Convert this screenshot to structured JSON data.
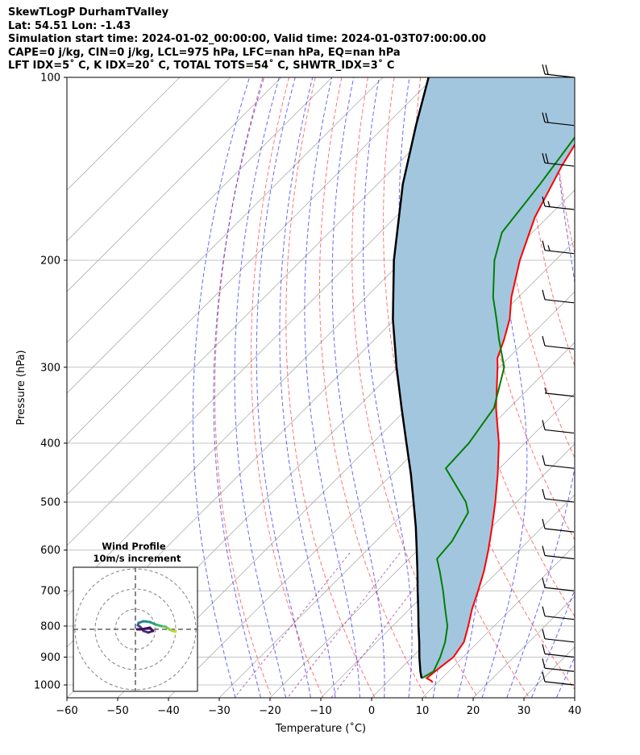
{
  "header": {
    "line1": "SkewTLogP DurhamTValley",
    "line2": "Lat: 54.51   Lon: -1.43",
    "line3": "Simulation start time: 2024-01-02_00:00:00, Valid time: 2024-01-03T07:00:00.00",
    "line4": "CAPE=0 j/kg, CIN=0 j/kg, LCL=975 hPa, LFC=nan hPa, EQ=nan hPa",
    "line5": "LFT IDX=5˚ C, K IDX=20˚ C, TOTAL TOTS=54˚ C, SHWTR_IDX=3˚ C"
  },
  "chart_data": {
    "type": "line",
    "title": "SkewTLogP DurhamTValley",
    "xlabel": "Temperature (˚C)",
    "ylabel": "Pressure (hPa)",
    "xlim": [
      -60,
      40
    ],
    "ylim": [
      1050,
      100
    ],
    "y_scale": "log",
    "skew": true,
    "grid": true,
    "x_ticks": [
      -60,
      -50,
      -40,
      -30,
      -20,
      -10,
      0,
      10,
      20,
      30,
      40
    ],
    "y_ticks": [
      1000,
      900,
      800,
      700,
      600,
      500,
      400,
      300,
      200,
      100
    ],
    "series": [
      {
        "role": "temperature",
        "color": "#ff0000",
        "points": [
          [
            991,
            9
          ],
          [
            985,
            8.5
          ],
          [
            975,
            7
          ],
          [
            950,
            7.3
          ],
          [
            900,
            8.1
          ],
          [
            850,
            7.2
          ],
          [
            800,
            4.9
          ],
          [
            750,
            2.3
          ],
          [
            700,
            -0.1
          ],
          [
            650,
            -2.8
          ],
          [
            600,
            -6.1
          ],
          [
            550,
            -9.9
          ],
          [
            500,
            -14.2
          ],
          [
            450,
            -19.2
          ],
          [
            400,
            -25.1
          ],
          [
            350,
            -32.6
          ],
          [
            300,
            -40.3
          ],
          [
            290,
            -42.1
          ],
          [
            270,
            -44.5
          ],
          [
            250,
            -47.4
          ],
          [
            230,
            -51.4
          ],
          [
            200,
            -57.0
          ],
          [
            170,
            -62.5
          ],
          [
            140,
            -67.3
          ],
          [
            120,
            -70.4
          ],
          [
            100,
            -74.2
          ]
        ]
      },
      {
        "role": "dewpoint",
        "color": "#008000",
        "points": [
          [
            975,
            6
          ],
          [
            950,
            7
          ],
          [
            900,
            5.5
          ],
          [
            850,
            3.5
          ],
          [
            800,
            0.8
          ],
          [
            750,
            -3
          ],
          [
            700,
            -7
          ],
          [
            650,
            -11.5
          ],
          [
            620,
            -14.5
          ],
          [
            580,
            -15
          ],
          [
            520,
            -17.5
          ],
          [
            500,
            -20
          ],
          [
            440,
            -30.6
          ],
          [
            400,
            -31
          ],
          [
            350,
            -33
          ],
          [
            300,
            -39
          ],
          [
            270,
            -45.5
          ],
          [
            250,
            -50
          ],
          [
            230,
            -55
          ],
          [
            200,
            -62
          ],
          [
            180,
            -66
          ],
          [
            150,
            -68
          ],
          [
            120,
            -71
          ],
          [
            100,
            -75
          ]
        ]
      },
      {
        "role": "parcel",
        "color": "#000000",
        "points": [
          [
            975,
            6
          ],
          [
            950,
            4.4
          ],
          [
            900,
            1.4
          ],
          [
            850,
            -1.6
          ],
          [
            800,
            -4.9
          ],
          [
            750,
            -8.3
          ],
          [
            700,
            -12.0
          ],
          [
            650,
            -15.9
          ],
          [
            600,
            -20.2
          ],
          [
            550,
            -24.9
          ],
          [
            500,
            -30.3
          ],
          [
            450,
            -36.3
          ],
          [
            400,
            -43.3
          ],
          [
            350,
            -51.2
          ],
          [
            300,
            -60.2
          ],
          [
            250,
            -70.4
          ],
          [
            200,
            -81.8
          ],
          [
            150,
            -95
          ],
          [
            120,
            -104
          ],
          [
            100,
            -111
          ]
        ]
      }
    ],
    "shading": {
      "between": [
        "parcel",
        "temperature"
      ],
      "color": "#a3c6df"
    },
    "wind_barbs": [
      {
        "p": 100,
        "barbs": 2
      },
      {
        "p": 120,
        "barbs": 2
      },
      {
        "p": 140,
        "barbs": 2
      },
      {
        "p": 165,
        "barbs": 1.5
      },
      {
        "p": 195,
        "barbs": 1.5
      },
      {
        "p": 235,
        "barbs": 1
      },
      {
        "p": 280,
        "barbs": 1
      },
      {
        "p": 335,
        "barbs": 0.5
      },
      {
        "p": 385,
        "barbs": 1
      },
      {
        "p": 440,
        "barbs": 1
      },
      {
        "p": 500,
        "barbs": 1
      },
      {
        "p": 560,
        "barbs": 1
      },
      {
        "p": 620,
        "barbs": 1
      },
      {
        "p": 700,
        "barbs": 1
      },
      {
        "p": 780,
        "barbs": 1
      },
      {
        "p": 850,
        "barbs": 1
      },
      {
        "p": 900,
        "barbs": 1
      },
      {
        "p": 950,
        "barbs": 1
      },
      {
        "p": 1000,
        "barbs": 1
      }
    ],
    "inset": {
      "title_line1": "Wind Profile",
      "title_line2": "10m/s increment",
      "rings": 3
    }
  }
}
